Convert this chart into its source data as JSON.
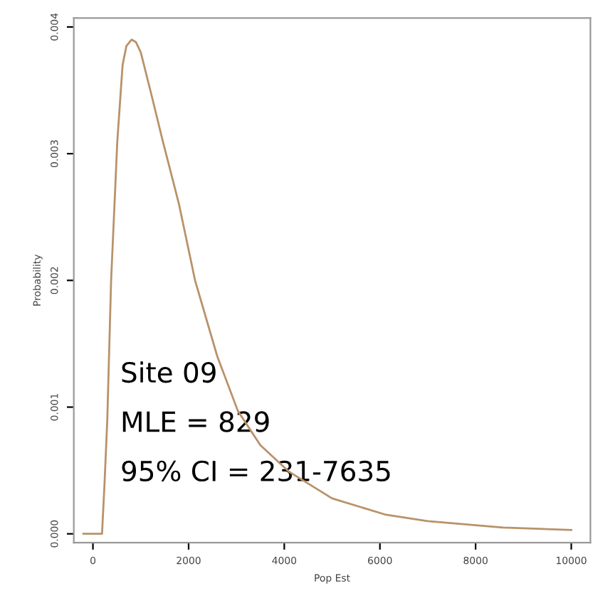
{
  "chart_data": {
    "type": "line",
    "xlabel": "Pop Est",
    "ylabel": "Probability",
    "x": [
      -200,
      100,
      190,
      243,
      300,
      380,
      510,
      620,
      700,
      810,
      900,
      1000,
      1200,
      1460,
      1800,
      2135,
      2600,
      3030,
      3500,
      4100,
      5000,
      6130,
      7000,
      8570,
      10000
    ],
    "series": [
      {
        "color": "#b8926a",
        "values": [
          0,
          0,
          0,
          0.0004,
          0.0009,
          0.002,
          0.0031,
          0.0037,
          0.00385,
          0.0039,
          0.00388,
          0.0038,
          0.0035,
          0.0031,
          0.0026,
          0.002,
          0.0014,
          0.00097,
          0.0007,
          0.00049,
          0.00028,
          0.00015,
          0.0001,
          5e-05,
          3e-05
        ]
      }
    ],
    "xlim": [
      -400,
      10400
    ],
    "ylim": [
      -7e-05,
      0.00407
    ],
    "xticks": [
      0,
      2000,
      4000,
      6000,
      8000,
      10000
    ],
    "yticks": [
      {
        "value": 0,
        "label": "0.000"
      },
      {
        "value": 0.001,
        "label": "0.001"
      },
      {
        "value": 0.002,
        "label": "0.002"
      },
      {
        "value": 0.003,
        "label": "0.003"
      },
      {
        "value": 0.004,
        "label": "0.004"
      }
    ],
    "annotations": [
      "Site 09",
      "MLE = 829",
      "95% CI = 231-7635"
    ],
    "grid": false,
    "legend": false,
    "marker": "none",
    "line_style": "solid"
  }
}
